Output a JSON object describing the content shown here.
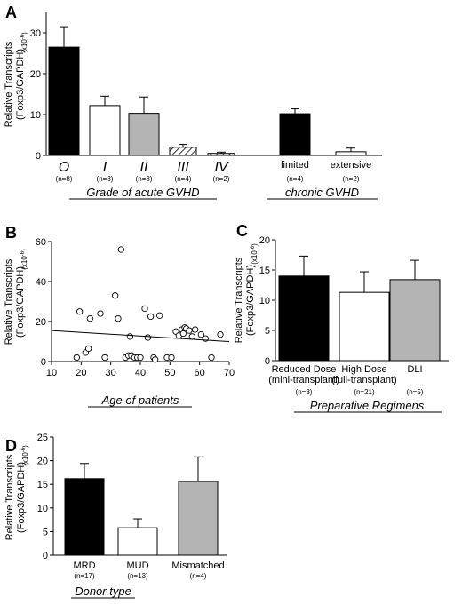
{
  "chart_data": [
    {
      "panel": "A",
      "type": "bar",
      "ylabel": [
        "Relative Transcripts",
        "(Foxp3/GAPDH)"
      ],
      "yunit": "(x10",
      "yunit_exp": "-6",
      "yunit_close": ")",
      "ylim": [
        0,
        35
      ],
      "yticks": [
        "0",
        "10",
        "20",
        "30"
      ],
      "groups": [
        {
          "title": "Grade of acute GVHD",
          "bars": [
            {
              "label": "O",
              "n": "(n=8)",
              "value": 26.5,
              "error": 5.0,
              "fill": "black"
            },
            {
              "label": "I",
              "n": "(n=8)",
              "value": 12.2,
              "error": 2.3,
              "fill": "white"
            },
            {
              "label": "II",
              "n": "(n=8)",
              "value": 10.3,
              "error": 4.0,
              "fill": "gray"
            },
            {
              "label": "III",
              "n": "(n=4)",
              "value": 2.0,
              "error": 0.7,
              "fill": "hatch"
            },
            {
              "label": "IV",
              "n": "(n=2)",
              "value": 0.5,
              "error": 0.3,
              "fill": "hatch"
            }
          ]
        },
        {
          "title": "chronic GVHD",
          "bars": [
            {
              "label": "limited",
              "n": "(n=4)",
              "value": 10.2,
              "error": 1.2,
              "fill": "black"
            },
            {
              "label": "extensive",
              "n": "(n=2)",
              "value": 0.9,
              "error": 0.9,
              "fill": "white"
            }
          ]
        }
      ]
    },
    {
      "panel": "B",
      "type": "scatter",
      "xlabel": "Age of patients",
      "ylabel": [
        "Relative Transcripts",
        "(Foxp3/GAPDH)"
      ],
      "yunit": "(x10",
      "yunit_exp": "-6",
      "yunit_close": ")",
      "xlim": [
        10,
        70
      ],
      "ylim": [
        0,
        60
      ],
      "xticks": [
        "10",
        "20",
        "30",
        "40",
        "50",
        "60",
        "70"
      ],
      "yticks": [
        "0",
        "20",
        "40",
        "60"
      ],
      "points": [
        [
          18.5,
          2
        ],
        [
          19.5,
          25
        ],
        [
          21.5,
          4.5
        ],
        [
          22.5,
          6.5
        ],
        [
          23,
          21.5
        ],
        [
          26.5,
          24
        ],
        [
          28,
          2
        ],
        [
          31.5,
          33
        ],
        [
          32.5,
          21.5
        ],
        [
          33.5,
          56
        ],
        [
          35,
          2
        ],
        [
          36,
          3
        ],
        [
          36.5,
          12.5
        ],
        [
          37,
          3
        ],
        [
          38,
          2
        ],
        [
          39,
          2
        ],
        [
          40,
          2
        ],
        [
          41.5,
          26.5
        ],
        [
          42.5,
          12
        ],
        [
          43.5,
          22.5
        ],
        [
          44.5,
          2
        ],
        [
          45,
          1
        ],
        [
          46.5,
          23
        ],
        [
          49,
          2
        ],
        [
          50.5,
          2
        ],
        [
          52,
          15
        ],
        [
          53,
          13
        ],
        [
          54,
          16
        ],
        [
          54.5,
          14
        ],
        [
          55,
          17
        ],
        [
          55.5,
          16.5
        ],
        [
          56.5,
          15.5
        ],
        [
          57.5,
          12.5
        ],
        [
          58.5,
          16
        ],
        [
          60.5,
          13.5
        ],
        [
          62,
          11.5
        ],
        [
          64,
          2
        ],
        [
          67,
          13.5
        ]
      ],
      "trendline": {
        "x": [
          10,
          70
        ],
        "y": [
          15.5,
          10
        ]
      }
    },
    {
      "panel": "C",
      "type": "bar",
      "xlabel": "Preparative Regimens",
      "ylabel": [
        "Relative Transcripts",
        "(Foxp3/GAPDH)"
      ],
      "yunit": "(x10",
      "yunit_exp": "-6",
      "yunit_close": ")",
      "ylim": [
        0,
        20
      ],
      "yticks": [
        "0",
        "5",
        "10",
        "15",
        "20"
      ],
      "bars": [
        {
          "label": [
            "Reduced Dose",
            "(mini-transplant)"
          ],
          "n": "(n=8)",
          "value": 14.0,
          "error": 3.3,
          "fill": "black"
        },
        {
          "label": [
            "High Dose",
            "(full-transplant)"
          ],
          "n": "(n=21)",
          "value": 11.3,
          "error": 3.4,
          "fill": "white"
        },
        {
          "label": [
            "DLI"
          ],
          "n": "(n=5)",
          "value": 13.4,
          "error": 3.2,
          "fill": "gray"
        }
      ]
    },
    {
      "panel": "D",
      "type": "bar",
      "xlabel": "Donor type",
      "ylabel": [
        "Relative Transcripts",
        "(Foxp3/GAPDH)"
      ],
      "yunit": "(x10",
      "yunit_exp": "-6",
      "yunit_close": ")",
      "ylim": [
        0,
        25
      ],
      "yticks": [
        "0",
        "5",
        "10",
        "15",
        "20",
        "25"
      ],
      "bars": [
        {
          "label": "MRD",
          "n": "(n=17)",
          "value": 16.2,
          "error": 3.2,
          "fill": "black"
        },
        {
          "label": "MUD",
          "n": "(n=13)",
          "value": 5.8,
          "error": 1.9,
          "fill": "white"
        },
        {
          "label": "Mismatched",
          "n": "(n=4)",
          "value": 15.6,
          "error": 5.2,
          "fill": "gray"
        }
      ]
    }
  ]
}
